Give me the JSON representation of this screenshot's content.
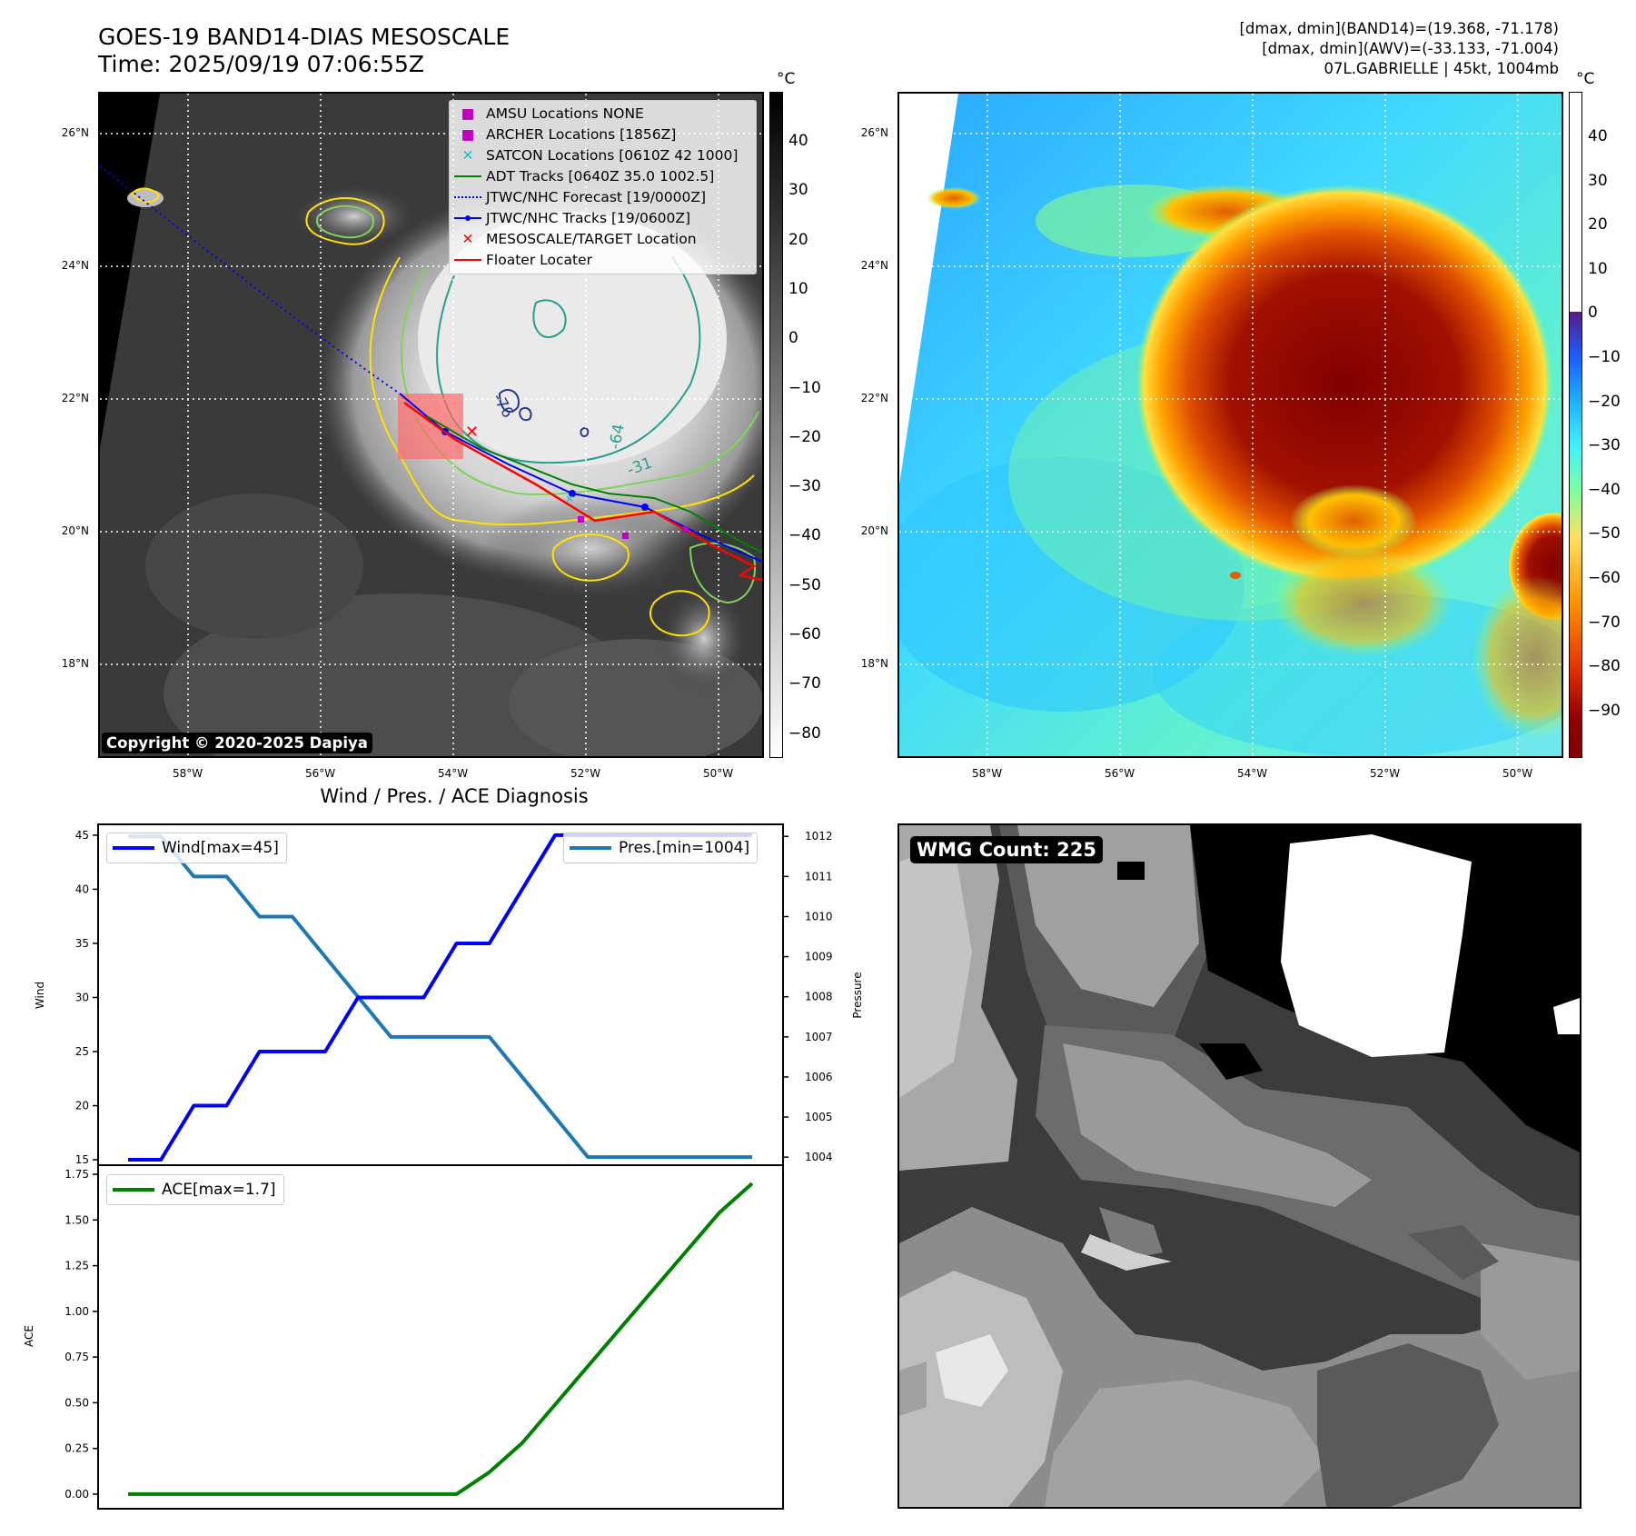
{
  "header": {
    "title_line1": "GOES-19 BAND14-DIAS MESOSCALE",
    "title_line2": "Time: 2025/09/19 07:06:55Z",
    "info_line1": "[dmax, dmin](BAND14)=(19.368, -71.178)",
    "info_line2": "[dmax, dmin](AWV)=(-33.133, -71.004)",
    "info_line3": "07L.GABRIELLE | 45kt, 1004mb"
  },
  "map_axes": {
    "lon_labels": [
      "58°W",
      "56°W",
      "54°W",
      "52°W",
      "50°W"
    ],
    "lat_labels": [
      "26°N",
      "24°N",
      "22°N",
      "20°N",
      "18°N"
    ]
  },
  "ir_panel": {
    "copyright": "Copyright © 2020-2025 Dapiya",
    "contour_labels": [
      "-76",
      "-64",
      "-31"
    ],
    "colorbar_unit": "°C",
    "colorbar_ticks": [
      "40",
      "30",
      "20",
      "10",
      "0",
      "−10",
      "−20",
      "−30",
      "−40",
      "−50",
      "−60",
      "−70",
      "−80"
    ],
    "legend": [
      {
        "label": "AMSU Locations NONE",
        "marker": "square",
        "color": "#c000c0"
      },
      {
        "label": "ARCHER Locations [1856Z]",
        "marker": "square",
        "color": "#c000c0"
      },
      {
        "label": "SATCON Locations [0610Z 42 1000]",
        "marker": "x",
        "color": "#17becf"
      },
      {
        "label": "ADT Tracks [0640Z 35.0 1002.5]",
        "marker": "line",
        "color": "#008000"
      },
      {
        "label": "JTWC/NHC Forecast [19/0000Z]",
        "marker": "dotted",
        "color": "#0000ff"
      },
      {
        "label": "JTWC/NHC Tracks [19/0600Z]",
        "marker": "line-dot",
        "color": "#0000ff"
      },
      {
        "label": "MESOSCALE/TARGET Location",
        "marker": "x",
        "color": "#ff0000"
      },
      {
        "label": "Floater Locater",
        "marker": "line",
        "color": "#ff0000"
      }
    ]
  },
  "awv_panel": {
    "colorbar_unit": "°C",
    "colorbar_ticks": [
      "40",
      "30",
      "20",
      "10",
      "0",
      "−10",
      "−20",
      "−30",
      "−40",
      "−50",
      "−60",
      "−70",
      "−80",
      "−90"
    ]
  },
  "wmg_panel": {
    "label": "WMG Count: 225"
  },
  "chart_data": [
    {
      "type": "line",
      "title": "Wind / Pres. / ACE Diagnosis",
      "ylabel": "Wind",
      "y2label": "Pressure",
      "ylim": [
        14.5,
        46
      ],
      "y2lim": [
        1003.8,
        1012.3
      ],
      "yticks": [
        15,
        20,
        25,
        30,
        35,
        40,
        45
      ],
      "y2ticks": [
        1004,
        1005,
        1006,
        1007,
        1008,
        1009,
        1010,
        1011,
        1012
      ],
      "series": [
        {
          "name": "Wind[max=45]",
          "color": "#0000ff",
          "axis": "left",
          "x": [
            0,
            1,
            2,
            3,
            4,
            5,
            6,
            7,
            8,
            9,
            10,
            11,
            12,
            13,
            14,
            15,
            16,
            17,
            18,
            19
          ],
          "values": [
            15,
            15,
            20,
            20,
            25,
            25,
            25,
            30,
            30,
            30,
            35,
            35,
            40,
            45,
            45,
            45,
            45,
            45,
            45,
            45
          ]
        },
        {
          "name": "Pres.[min=1004]",
          "color": "#1f77b4",
          "axis": "right",
          "x": [
            0,
            1,
            2,
            3,
            4,
            5,
            6,
            7,
            8,
            9,
            10,
            11,
            12,
            13,
            14,
            15,
            16,
            17,
            18,
            19
          ],
          "values": [
            1012,
            1012,
            1011,
            1011,
            1010,
            1010,
            1009,
            1008,
            1007,
            1007,
            1007,
            1007,
            1006,
            1005,
            1004,
            1004,
            1004,
            1004,
            1004,
            1004
          ]
        }
      ]
    },
    {
      "type": "line",
      "ylabel": "ACE",
      "ylim": [
        -0.08,
        1.8
      ],
      "yticks": [
        "0.00",
        "0.25",
        "0.50",
        "0.75",
        "1.00",
        "1.25",
        "1.50",
        "1.75"
      ],
      "series": [
        {
          "name": "ACE[max=1.7]",
          "color": "#008000",
          "x": [
            0,
            1,
            2,
            3,
            4,
            5,
            6,
            7,
            8,
            9,
            10,
            11,
            12,
            13,
            14,
            15,
            16,
            17,
            18,
            19
          ],
          "values": [
            0,
            0,
            0,
            0,
            0,
            0,
            0,
            0,
            0,
            0,
            0,
            0.12,
            0.28,
            0.49,
            0.7,
            0.91,
            1.12,
            1.33,
            1.54,
            1.7
          ]
        }
      ]
    }
  ]
}
